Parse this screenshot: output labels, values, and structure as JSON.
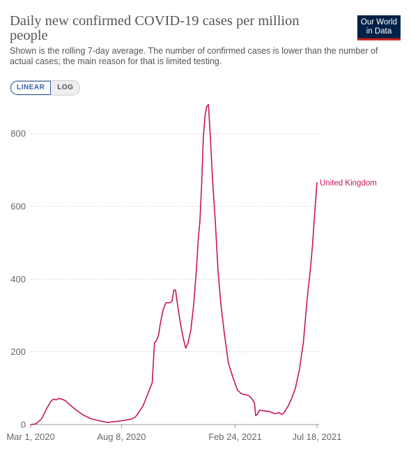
{
  "header": {
    "title": "Daily new confirmed COVID-19 cases per million people",
    "subtitle": "Shown is the rolling 7-day average. The number of confirmed cases is lower than the number of actual cases; the main reason for that is limited testing.",
    "logo_line1": "Our World",
    "logo_line2": "in Data"
  },
  "toggle": {
    "linear_label": "LINEAR",
    "log_label": "LOG",
    "selected": "LINEAR"
  },
  "colors": {
    "series": "#c6145d",
    "grid": "#dddddd",
    "axis_text": "#666666",
    "logo_bg": "#002147",
    "logo_accent": "#ce261e",
    "toggle_active": "#3360a9"
  },
  "chart_data": {
    "type": "line",
    "title": "Daily new confirmed COVID-19 cases per million people",
    "subtitle": "Shown is the rolling 7-day average. The number of confirmed cases is lower than the number of actual cases; the main reason for that is limited testing.",
    "xlabel": "",
    "ylabel": "",
    "xlim": [
      "2020-03-01",
      "2021-07-18"
    ],
    "ylim": [
      0,
      880
    ],
    "y_ticks": [
      0,
      200,
      400,
      600,
      800
    ],
    "x_ticks": [
      {
        "date": "2020-03-01",
        "label": "Mar 1, 2020"
      },
      {
        "date": "2020-08-08",
        "label": "Aug 8, 2020"
      },
      {
        "date": "2021-02-24",
        "label": "Feb 24, 2021"
      },
      {
        "date": "2021-07-18",
        "label": "Jul 18, 2021"
      }
    ],
    "grid": "horizontal dashed",
    "legend": "label at end of line",
    "series": [
      {
        "name": "United Kingdom",
        "points": [
          [
            "2020-03-01",
            0
          ],
          [
            "2020-03-10",
            2
          ],
          [
            "2020-03-20",
            15
          ],
          [
            "2020-03-28",
            40
          ],
          [
            "2020-04-05",
            63
          ],
          [
            "2020-04-10",
            70
          ],
          [
            "2020-04-15",
            68
          ],
          [
            "2020-04-20",
            72
          ],
          [
            "2020-04-25",
            70
          ],
          [
            "2020-05-01",
            66
          ],
          [
            "2020-05-10",
            53
          ],
          [
            "2020-05-20",
            40
          ],
          [
            "2020-06-01",
            27
          ],
          [
            "2020-06-15",
            16
          ],
          [
            "2020-07-01",
            10
          ],
          [
            "2020-07-15",
            6
          ],
          [
            "2020-07-25",
            8
          ],
          [
            "2020-08-01",
            9
          ],
          [
            "2020-08-10",
            11
          ],
          [
            "2020-08-25",
            15
          ],
          [
            "2020-09-01",
            20
          ],
          [
            "2020-09-08",
            35
          ],
          [
            "2020-09-15",
            52
          ],
          [
            "2020-09-22",
            80
          ],
          [
            "2020-10-01",
            115
          ],
          [
            "2020-10-05",
            225
          ],
          [
            "2020-10-08",
            230
          ],
          [
            "2020-10-12",
            245
          ],
          [
            "2020-10-15",
            275
          ],
          [
            "2020-10-20",
            315
          ],
          [
            "2020-10-25",
            335
          ],
          [
            "2020-11-01",
            335
          ],
          [
            "2020-11-05",
            340
          ],
          [
            "2020-11-08",
            370
          ],
          [
            "2020-11-11",
            370
          ],
          [
            "2020-11-15",
            325
          ],
          [
            "2020-11-20",
            275
          ],
          [
            "2020-11-25",
            235
          ],
          [
            "2020-11-29",
            210
          ],
          [
            "2020-12-03",
            225
          ],
          [
            "2020-12-08",
            260
          ],
          [
            "2020-12-13",
            330
          ],
          [
            "2020-12-18",
            430
          ],
          [
            "2020-12-21",
            510
          ],
          [
            "2020-12-24",
            560
          ],
          [
            "2020-12-27",
            660
          ],
          [
            "2020-12-30",
            790
          ],
          [
            "2021-01-02",
            850
          ],
          [
            "2021-01-05",
            875
          ],
          [
            "2021-01-08",
            880
          ],
          [
            "2021-01-11",
            800
          ],
          [
            "2021-01-15",
            680
          ],
          [
            "2021-01-20",
            560
          ],
          [
            "2021-01-25",
            420
          ],
          [
            "2021-01-30",
            330
          ],
          [
            "2021-02-05",
            250
          ],
          [
            "2021-02-12",
            170
          ],
          [
            "2021-02-20",
            130
          ],
          [
            "2021-02-28",
            95
          ],
          [
            "2021-03-07",
            85
          ],
          [
            "2021-03-15",
            82
          ],
          [
            "2021-03-20",
            80
          ],
          [
            "2021-03-25",
            72
          ],
          [
            "2021-03-30",
            60
          ],
          [
            "2021-04-01",
            25
          ],
          [
            "2021-04-04",
            28
          ],
          [
            "2021-04-08",
            40
          ],
          [
            "2021-04-15",
            38
          ],
          [
            "2021-04-25",
            36
          ],
          [
            "2021-05-05",
            30
          ],
          [
            "2021-05-12",
            33
          ],
          [
            "2021-05-18",
            28
          ],
          [
            "2021-05-22",
            35
          ],
          [
            "2021-05-28",
            50
          ],
          [
            "2021-06-03",
            70
          ],
          [
            "2021-06-10",
            100
          ],
          [
            "2021-06-17",
            150
          ],
          [
            "2021-06-24",
            225
          ],
          [
            "2021-07-01",
            350
          ],
          [
            "2021-07-06",
            420
          ],
          [
            "2021-07-10",
            490
          ],
          [
            "2021-07-14",
            580
          ],
          [
            "2021-07-18",
            665
          ]
        ]
      }
    ]
  }
}
